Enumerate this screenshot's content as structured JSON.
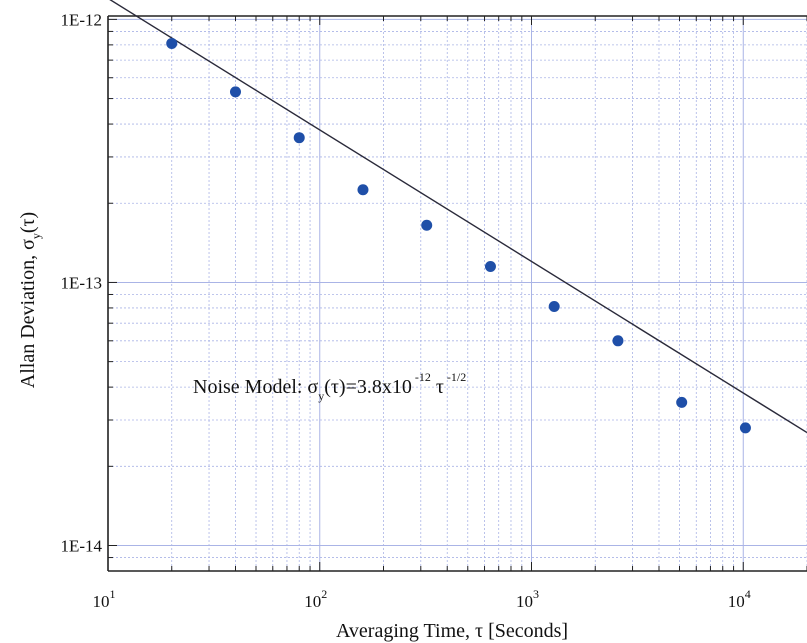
{
  "chart_data": {
    "type": "scatter",
    "title": "",
    "x_scale": "log",
    "y_scale": "log",
    "xlim": [
      10,
      20000
    ],
    "ylim": [
      8e-15,
      1.03e-12
    ],
    "grid": true,
    "xlabel": {
      "text": "Averaging Time,  τ  [Seconds]"
    },
    "ylabel": {
      "main": "Allan Deviation,  σ",
      "sub": "y",
      "tail": "(τ)"
    },
    "x_ticks": [
      {
        "value": 10,
        "base": "10",
        "exp": "1"
      },
      {
        "value": 100,
        "base": "10",
        "exp": "2"
      },
      {
        "value": 1000,
        "base": "10",
        "exp": "3"
      },
      {
        "value": 10000,
        "base": "10",
        "exp": "4"
      }
    ],
    "y_ticks": [
      {
        "value": 1e-12,
        "label": "1E-12"
      },
      {
        "value": 1e-13,
        "label": "1E-13"
      },
      {
        "value": 1e-14,
        "label": "1E-14"
      }
    ],
    "series": [
      {
        "type": "scatter",
        "color": "#1f4fa8",
        "points": [
          {
            "x": 20,
            "y": 8.1e-13
          },
          {
            "x": 40,
            "y": 5.3e-13
          },
          {
            "x": 80,
            "y": 3.55e-13
          },
          {
            "x": 160,
            "y": 2.25e-13
          },
          {
            "x": 320,
            "y": 1.65e-13
          },
          {
            "x": 640,
            "y": 1.15e-13
          },
          {
            "x": 1280,
            "y": 8.1e-14
          },
          {
            "x": 2560,
            "y": 6e-14
          },
          {
            "x": 5120,
            "y": 3.5e-14
          },
          {
            "x": 10240,
            "y": 2.8e-14
          }
        ]
      },
      {
        "type": "line",
        "color": "#2a2a3a",
        "model": "3.8e-12 * tau^(-1/2)",
        "coefficient": 3.8e-12,
        "exponent": -0.5
      }
    ],
    "annotation": {
      "prefix": "Noise Model: σ",
      "sub": "y",
      "mid": "(τ)=3.8x10",
      "exp1": "-12",
      "tau": "τ",
      "exp2": "-1/2"
    },
    "colors": {
      "grid": "#aab4e6",
      "axis": "#222222",
      "marker": "#1f4fa8"
    }
  }
}
